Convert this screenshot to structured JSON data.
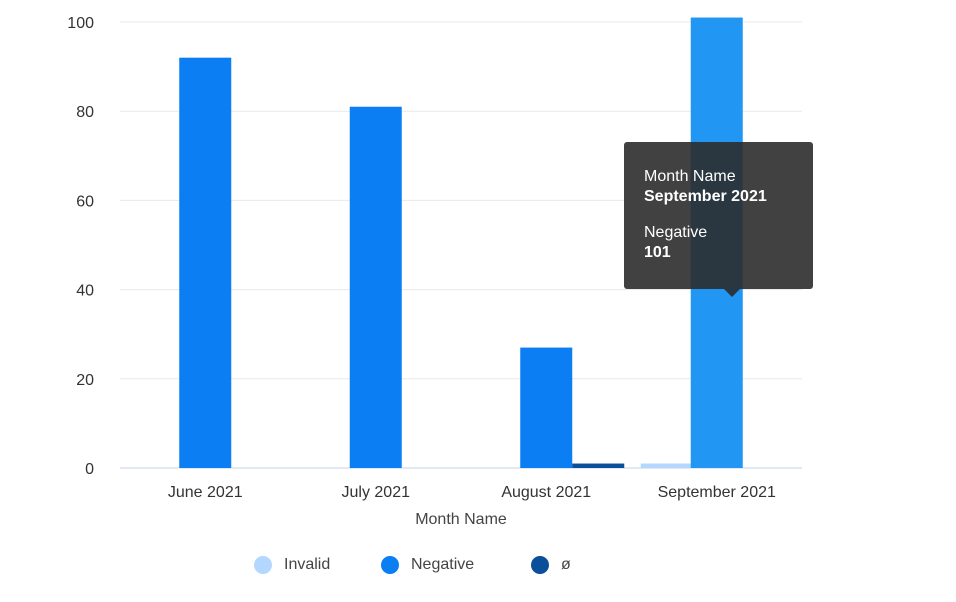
{
  "chart_data": {
    "type": "bar",
    "categories": [
      "June 2021",
      "July 2021",
      "August 2021",
      "September 2021"
    ],
    "series": [
      {
        "name": "Invalid",
        "color": "#b3d7ff",
        "values": [
          0,
          0,
          0,
          1
        ]
      },
      {
        "name": "Negative",
        "color": "#0a7ef2",
        "values": [
          92,
          81,
          27,
          101
        ]
      },
      {
        "name": "ø",
        "color": "#0a4f9a",
        "values": [
          0,
          0,
          1,
          0
        ]
      }
    ],
    "highlight": {
      "category": "September 2021",
      "series": "Negative",
      "color": "#2196f3"
    },
    "xlabel": "Month Name",
    "ylabel": "",
    "ylim": [
      0,
      100
    ],
    "yticks": [
      "0",
      "20",
      "40",
      "60",
      "80",
      "100"
    ],
    "grid": true,
    "legend": "bottom-center"
  },
  "tooltip": {
    "key1": "Month Name",
    "value1": "September 2021",
    "key2": "Negative",
    "value2": "101"
  }
}
